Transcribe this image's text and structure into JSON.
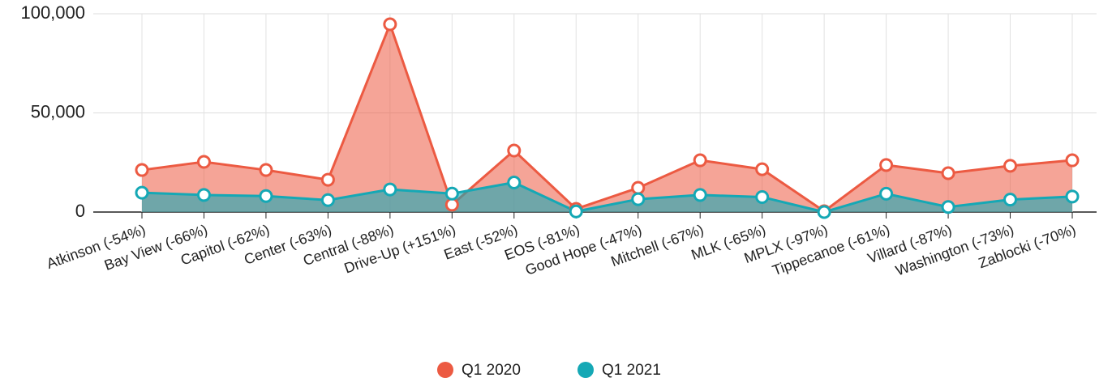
{
  "chart_data": {
    "type": "area",
    "categories": [
      "Atkinson (-54%)",
      "Bay View (-66%)",
      "Capitol (-62%)",
      "Center (-63%)",
      "Central (-88%)",
      "Drive-Up (+151%)",
      "East (-52%)",
      "EOS (-81%)",
      "Good Hope (-47%)",
      "Mitchell (-67%)",
      "MLK (-65%)",
      "MPLX (-97%)",
      "Tippecanoe (-61%)",
      "Villard (-87%)",
      "Washington (-73%)",
      "Zablocki (-70%)"
    ],
    "series": [
      {
        "name": "Q1 2020",
        "color": "#ec5a42",
        "values": [
          21200,
          25300,
          21200,
          16300,
          94700,
          3700,
          31000,
          1600,
          12200,
          26100,
          21600,
          400,
          23700,
          19600,
          23300,
          26100
        ]
      },
      {
        "name": "Q1 2021",
        "color": "#15a8b5",
        "values": [
          9750,
          8600,
          8060,
          6030,
          11400,
          9300,
          14900,
          300,
          6500,
          8600,
          7560,
          12,
          9240,
          2550,
          6290,
          7830
        ]
      }
    ],
    "ylim": [
      0,
      100000
    ],
    "yticks": [
      0,
      {
        "value": 50000,
        "label": "50,000"
      },
      {
        "value": 100000,
        "label": "100,000"
      }
    ],
    "grid": true,
    "legend": "bottom"
  }
}
